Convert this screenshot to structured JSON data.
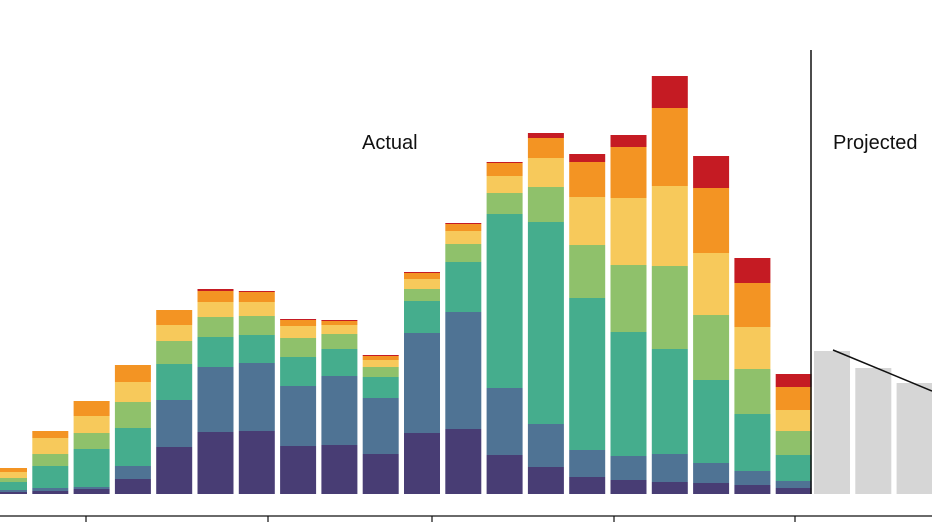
{
  "chart_data": {
    "type": "bar",
    "stacked": true,
    "regions": {
      "actual_label": "Actual",
      "projected_label": "Projected"
    },
    "xlabel": "",
    "ylabel": "",
    "ylim": [
      0,
      430
    ],
    "grid": false,
    "legend": "none",
    "series_colors": [
      "#483d74",
      "#4f7394",
      "#45ad8d",
      "#8fc16b",
      "#f7c95b",
      "#f39423",
      "#c51b23"
    ],
    "actual": [
      [
        2,
        2,
        8,
        4,
        6,
        4,
        0
      ],
      [
        3,
        3,
        22,
        12,
        16,
        7,
        0
      ],
      [
        5,
        2,
        38,
        16,
        17,
        15,
        0
      ],
      [
        15,
        13,
        38,
        26,
        20,
        17,
        0
      ],
      [
        47,
        47,
        36,
        23,
        16,
        15,
        0
      ],
      [
        62,
        65,
        30,
        20,
        15,
        11,
        2
      ],
      [
        63,
        68,
        28,
        19,
        14,
        10,
        1
      ],
      [
        48,
        60,
        29,
        19,
        12,
        6,
        1
      ],
      [
        49,
        69,
        27,
        15,
        9,
        4,
        1
      ],
      [
        40,
        56,
        21,
        10,
        7,
        4,
        1
      ],
      [
        61,
        100,
        32,
        12,
        10,
        6,
        1
      ],
      [
        65,
        117,
        50,
        18,
        13,
        7,
        1
      ],
      [
        39,
        67,
        174,
        21,
        17,
        13,
        1
      ],
      [
        27,
        43,
        202,
        35,
        29,
        20,
        5
      ],
      [
        17,
        27,
        152,
        53,
        48,
        35,
        8
      ],
      [
        14,
        24,
        124,
        67,
        67,
        51,
        12
      ],
      [
        12,
        28,
        105,
        83,
        80,
        78,
        32
      ],
      [
        11,
        20,
        83,
        65,
        62,
        65,
        32
      ],
      [
        9,
        14,
        57,
        45,
        42,
        44,
        25
      ],
      [
        6,
        7,
        26,
        24,
        21,
        23,
        13
      ]
    ],
    "projected": [
      143,
      126,
      111
    ]
  }
}
